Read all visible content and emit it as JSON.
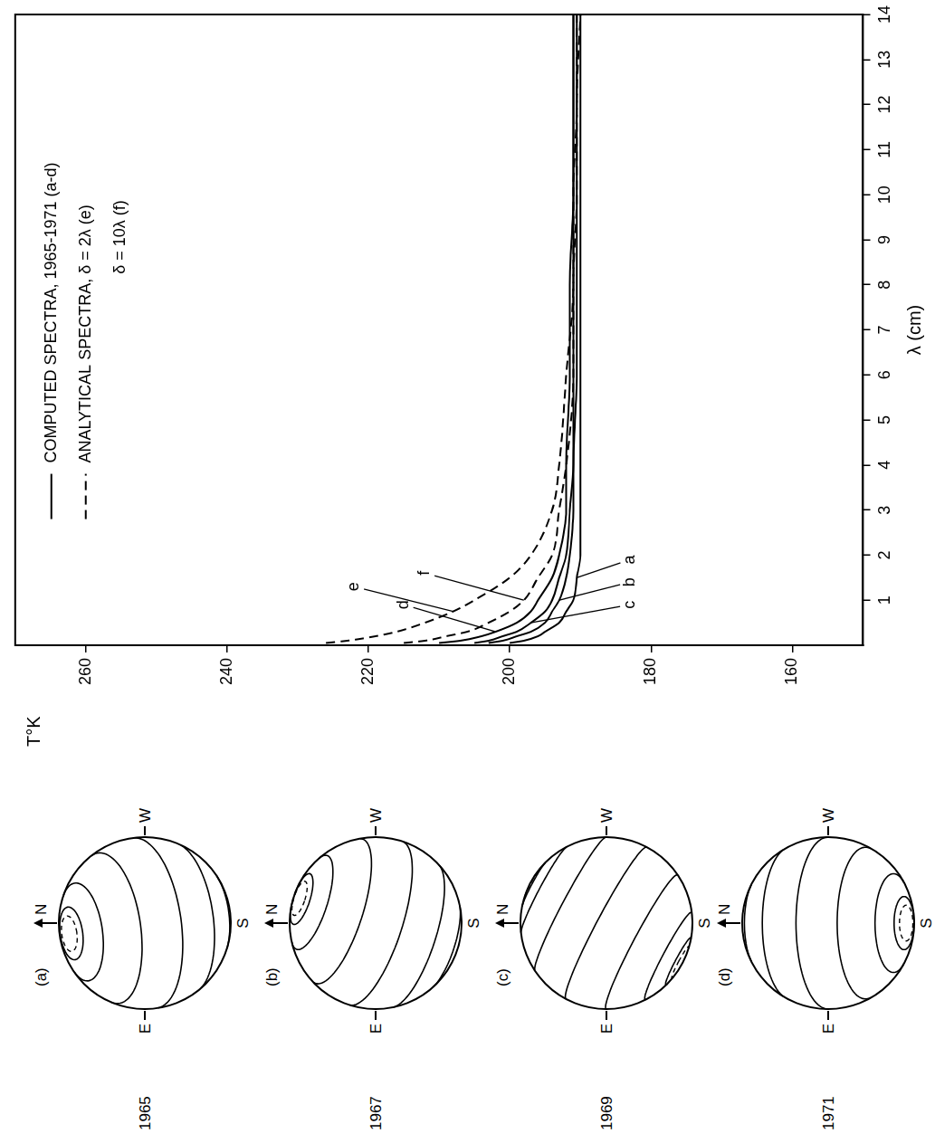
{
  "chart_data": {
    "type": "line",
    "x_label": "λ (cm)",
    "y_label": "T°K",
    "x": [
      0.05,
      0.1,
      0.2,
      0.3,
      0.5,
      0.75,
      1,
      1.5,
      2,
      3,
      4,
      6,
      8,
      10,
      12,
      14
    ],
    "xlim": [
      0,
      14
    ],
    "xticks": [
      1,
      2,
      3,
      4,
      5,
      6,
      7,
      8,
      9,
      10,
      11,
      12,
      13,
      14
    ],
    "ylim": [
      150,
      270
    ],
    "yticks": [
      160,
      180,
      200,
      220,
      240,
      260
    ],
    "grid": false,
    "series": [
      {
        "name": "a",
        "color": "#000000",
        "line_style": "solid",
        "values": [
          200,
          198,
          196,
          195,
          193,
          192,
          191,
          190.5,
          190,
          190,
          190,
          190,
          190,
          190,
          190,
          190
        ]
      },
      {
        "name": "b",
        "color": "#000000",
        "line_style": "solid",
        "values": [
          203,
          201,
          199,
          197,
          195,
          194,
          193,
          192,
          191.5,
          191,
          191,
          190.5,
          190.5,
          190.5,
          190.5,
          190.5
        ]
      },
      {
        "name": "c",
        "color": "#000000",
        "line_style": "solid",
        "values": [
          205,
          203,
          201,
          199,
          197,
          195,
          194,
          193,
          192,
          191.5,
          191,
          191,
          191,
          191,
          191,
          191
        ]
      },
      {
        "name": "d",
        "color": "#000000",
        "line_style": "solid",
        "values": [
          210,
          207,
          204,
          202,
          199,
          197,
          196,
          194,
          193,
          192,
          192,
          191.5,
          191.5,
          191,
          191,
          191
        ]
      },
      {
        "name": "e",
        "color": "#000000",
        "line_style": "dashed",
        "values": [
          226,
          223,
          219,
          216,
          212,
          208,
          205,
          200,
          197,
          194,
          193,
          192,
          191,
          191,
          190.5,
          190.5
        ]
      },
      {
        "name": "f",
        "color": "#000000",
        "line_style": "dashed",
        "values": [
          215,
          212,
          209,
          206,
          203,
          200,
          198,
          196,
          194,
          193,
          192,
          191,
          191,
          190.5,
          190.5,
          190
        ]
      }
    ],
    "annotations": [
      {
        "text": "COMPUTED SPECTRA, 1965-1971 (a-d)",
        "line_style": "solid"
      },
      {
        "text": "ANALYTICAL SPECTRA, δ = 2λ (e)",
        "line_style": "dashed"
      },
      {
        "text": "δ = 10λ (f)"
      }
    ]
  },
  "globes": {
    "north": "N",
    "south": "S",
    "east": "E",
    "west": "W",
    "panels": [
      {
        "label": "(a)",
        "year": "1965"
      },
      {
        "label": "(b)",
        "year": "1967"
      },
      {
        "label": "(c)",
        "year": "1969"
      },
      {
        "label": "(d)",
        "year": "1971"
      }
    ]
  }
}
